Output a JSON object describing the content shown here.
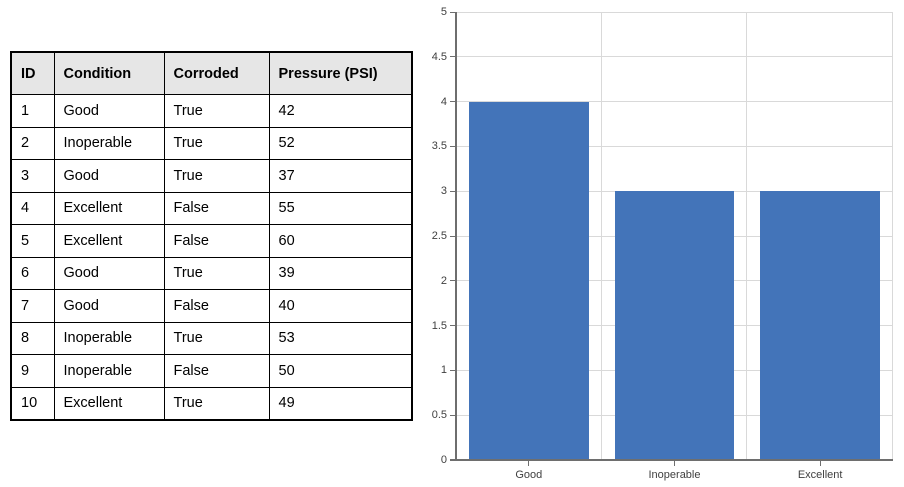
{
  "table": {
    "columns": [
      "ID",
      "Condition",
      "Corroded",
      "Pressure (PSI)"
    ],
    "rows": [
      [
        "1",
        "Good",
        "True",
        "42"
      ],
      [
        "2",
        "Inoperable",
        "True",
        "52"
      ],
      [
        "3",
        "Good",
        "True",
        "37"
      ],
      [
        "4",
        "Excellent",
        "False",
        "55"
      ],
      [
        "5",
        "Excellent",
        "False",
        "60"
      ],
      [
        "6",
        "Good",
        "True",
        "39"
      ],
      [
        "7",
        "Good",
        "False",
        "40"
      ],
      [
        "8",
        "Inoperable",
        "True",
        "53"
      ],
      [
        "9",
        "Inoperable",
        "False",
        "50"
      ],
      [
        "10",
        "Excellent",
        "True",
        "49"
      ]
    ],
    "header_bg": "#E6E6E6",
    "border_color": "#000000"
  },
  "chart_data": {
    "type": "bar",
    "categories": [
      "Good",
      "Inoperable",
      "Excellent"
    ],
    "values": [
      4,
      3,
      3
    ],
    "title": "",
    "xlabel": "",
    "ylabel": "",
    "ylim": [
      0,
      5
    ],
    "ytick_step": 0.5,
    "yticks": [
      0,
      0.5,
      1,
      1.5,
      2,
      2.5,
      3,
      3.5,
      4,
      4.5,
      5
    ],
    "grid": true,
    "legend": "none",
    "bar_color": "#4374B9",
    "gridline_color": "#D9D9D9",
    "axis_color": "#6E6E6E",
    "label_color": "#3F3F3F"
  }
}
